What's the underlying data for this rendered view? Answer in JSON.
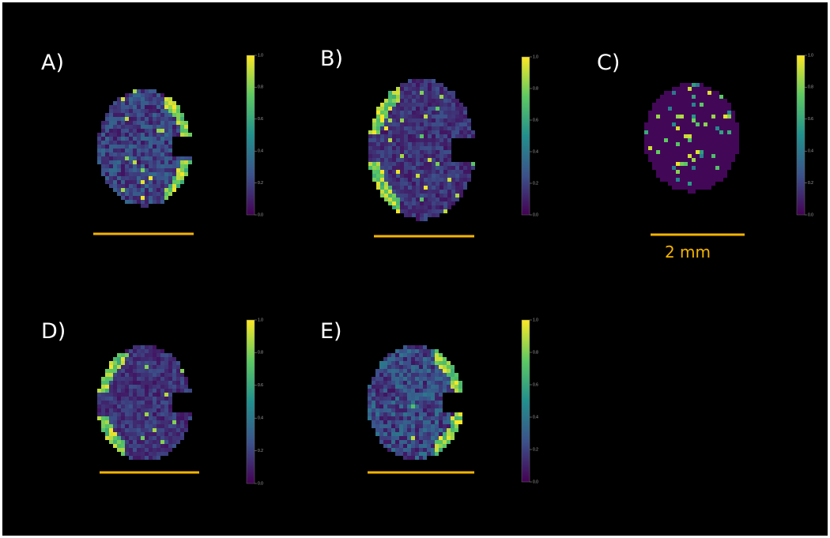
{
  "panels": [
    {
      "label": "A)",
      "colorbar_ticks": [
        "0.0",
        "0.2",
        "0.4",
        "0.6",
        "0.8",
        "1.0"
      ]
    },
    {
      "label": "B)",
      "colorbar_ticks": [
        "0.0",
        "0.2",
        "0.4",
        "0.6",
        "0.8",
        "1.0"
      ]
    },
    {
      "label": "C)",
      "colorbar_ticks": [
        "0.0",
        "0.2",
        "0.4",
        "0.6",
        "0.8",
        "1.0"
      ]
    },
    {
      "label": "D)",
      "colorbar_ticks": [
        "0.0",
        "0.2",
        "0.4",
        "0.6",
        "0.8",
        "1.0"
      ]
    },
    {
      "label": "E)",
      "colorbar_ticks": [
        "0.0",
        "0.2",
        "0.4",
        "0.6",
        "0.8",
        "1.0"
      ]
    }
  ],
  "scale_label": "2 mm"
}
